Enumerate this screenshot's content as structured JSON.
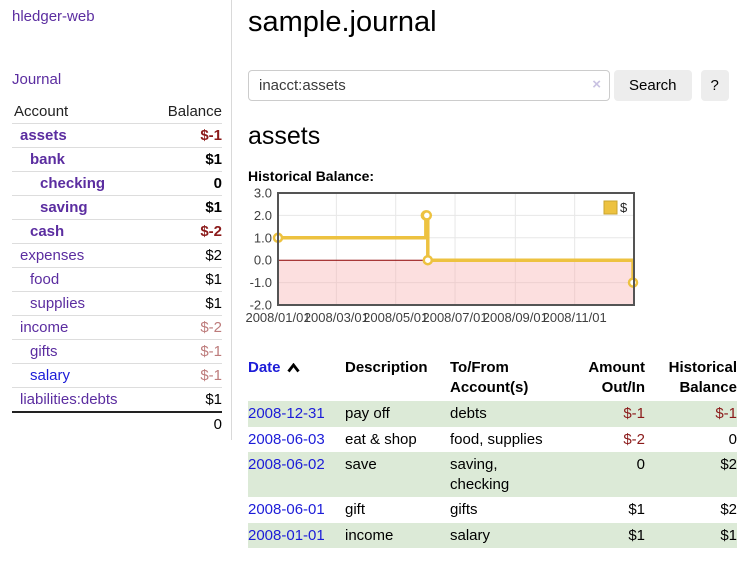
{
  "app": {
    "brand": "hledger-web",
    "nav_journal": "Journal"
  },
  "colors": {
    "link_purple": "#5b2da0",
    "link_blue": "#1c1cd8",
    "negative_red": "#8b1a1a",
    "negative_muted_red": "#bd7b7b",
    "row_stripe_green": "#dcead7",
    "chart_gold": "#edc240"
  },
  "sidebar": {
    "header": {
      "account": "Account",
      "balance": "Balance"
    },
    "accounts": [
      {
        "name": "assets",
        "depth": 0,
        "bold": true,
        "link": "purple",
        "balance": "$-1",
        "balance_class": "neg"
      },
      {
        "name": "bank",
        "depth": 1,
        "bold": true,
        "link": "purple",
        "balance": "$1",
        "balance_class": ""
      },
      {
        "name": "checking",
        "depth": 2,
        "bold": true,
        "link": "purple",
        "balance": "0",
        "balance_class": ""
      },
      {
        "name": "saving",
        "depth": 2,
        "bold": true,
        "link": "purple",
        "balance": "$1",
        "balance_class": ""
      },
      {
        "name": "cash",
        "depth": 1,
        "bold": true,
        "link": "purple",
        "balance": "$-2",
        "balance_class": "neg"
      },
      {
        "name": "expenses",
        "depth": 0,
        "bold": false,
        "link": "purple",
        "balance": "$2",
        "balance_class": ""
      },
      {
        "name": "food",
        "depth": 1,
        "bold": false,
        "link": "purple",
        "balance": "$1",
        "balance_class": ""
      },
      {
        "name": "supplies",
        "depth": 1,
        "bold": false,
        "link": "purple",
        "balance": "$1",
        "balance_class": ""
      },
      {
        "name": "income",
        "depth": 0,
        "bold": false,
        "link": "purple",
        "balance": "$-2",
        "balance_class": "neg-muted"
      },
      {
        "name": "gifts",
        "depth": 1,
        "bold": false,
        "link": "purple",
        "balance": "$-1",
        "balance_class": "neg-muted"
      },
      {
        "name": "salary",
        "depth": 1,
        "bold": false,
        "link": "blue",
        "balance": "$-1",
        "balance_class": "neg-muted"
      },
      {
        "name": "liabilities:debts",
        "depth": 0,
        "bold": false,
        "link": "purple",
        "balance": "$1",
        "balance_class": ""
      }
    ],
    "total": "0"
  },
  "main": {
    "title": "sample.journal",
    "search": {
      "value": "inacct:assets",
      "clear_glyph": "×",
      "button_label": "Search",
      "help_label": "?"
    },
    "account_heading": "assets"
  },
  "chart_data": {
    "type": "line",
    "step": true,
    "title": "Historical Balance:",
    "series": [
      {
        "name": "$",
        "color": "#edc240",
        "points": [
          [
            "2008-01-01",
            1
          ],
          [
            "2008-06-01",
            2
          ],
          [
            "2008-06-02",
            2
          ],
          [
            "2008-06-03",
            0
          ],
          [
            "2008-12-31",
            -1
          ]
        ]
      }
    ],
    "x_range": [
      "2008-01-01",
      "2009-01-01"
    ],
    "x_tick_labels": [
      "2008/01/01",
      "2008/03/01",
      "2008/05/01",
      "2008/07/01",
      "2008/09/01",
      "2008/11/01"
    ],
    "x_tick_dates": [
      "2008-01-01",
      "2008-03-01",
      "2008-05-01",
      "2008-07-01",
      "2008-09-01",
      "2008-11-01"
    ],
    "y_ticks": [
      "3.0",
      "2.0",
      "1.0",
      "0.0",
      "-1.0",
      "-2.0"
    ],
    "ylim": [
      -2,
      3
    ],
    "grid": true,
    "legend_position": "top-right",
    "negative_region_color": "rgba(246,170,170,0.38)",
    "zero_line_color": "#8b0000"
  },
  "register": {
    "columns": [
      "Date",
      "Description",
      "To/From Account(s)",
      "Amount Out/In",
      "Historical Balance"
    ],
    "rows": [
      {
        "date": "2008-12-31",
        "description": "pay off",
        "accounts": "debts",
        "amount": "$-1",
        "amount_negative": true,
        "balance": "$-1",
        "balance_negative": true
      },
      {
        "date": "2008-06-03",
        "description": "eat & shop",
        "accounts": "food, supplies",
        "amount": "$-2",
        "amount_negative": true,
        "balance": "0",
        "balance_negative": false
      },
      {
        "date": "2008-06-02",
        "description": "save",
        "accounts": "saving, checking",
        "amount": "0",
        "amount_negative": false,
        "balance": "$2",
        "balance_negative": false
      },
      {
        "date": "2008-06-01",
        "description": "gift",
        "accounts": "gifts",
        "amount": "$1",
        "amount_negative": false,
        "balance": "$2",
        "balance_negative": false
      },
      {
        "date": "2008-01-01",
        "description": "income",
        "accounts": "salary",
        "amount": "$1",
        "amount_negative": false,
        "balance": "$1",
        "balance_negative": false
      }
    ]
  }
}
